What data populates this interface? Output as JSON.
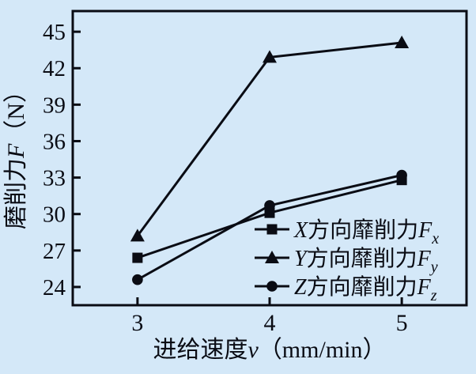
{
  "figure": {
    "background": "#d4e8f8",
    "ink": "#0a0c14"
  },
  "chart_data": {
    "type": "line",
    "title": "",
    "x": [
      3,
      4,
      5
    ],
    "series": [
      {
        "name": "Fx",
        "marker": "square",
        "values": [
          26.4,
          30.1,
          32.8
        ],
        "legend_text": "X方向靡削力Fx",
        "legend_parts": {
          "var1": "X",
          "cjk": "方向靡削力",
          "var2": "F",
          "sub": "x"
        }
      },
      {
        "name": "Fy",
        "marker": "triangle",
        "values": [
          28.2,
          42.9,
          44.1
        ],
        "legend_text": "Y方向靡削力Fy",
        "legend_parts": {
          "var1": "Y",
          "cjk": "方向靡削力",
          "var2": "F",
          "sub": "y"
        }
      },
      {
        "name": "Fz",
        "marker": "circle",
        "values": [
          24.6,
          30.7,
          33.2
        ],
        "legend_text": "Z方向靡削力Fz",
        "legend_parts": {
          "var1": "Z",
          "cjk": "方向靡削力",
          "var2": "F",
          "sub": "z"
        }
      }
    ],
    "xlabel_text": "进给速度v（mm/min）",
    "xlabel_parts": {
      "cjk": "进给速度",
      "var": "v",
      "unit": "（mm/min）"
    },
    "ylabel_text": "磨削力F（N）",
    "ylabel_parts": {
      "cjk": "磨削力",
      "var": "F",
      "unit": "（N）"
    },
    "xticks": [
      3,
      4,
      5
    ],
    "yticks": [
      24,
      27,
      30,
      33,
      36,
      39,
      42,
      45
    ],
    "xlim": [
      2.51,
      5.49
    ],
    "ylim": [
      22.5,
      46.7
    ],
    "grid": false,
    "legend_position": "inside-bottom-right",
    "line_color": "#0a0c14",
    "marker_color": "#0a0c14"
  }
}
